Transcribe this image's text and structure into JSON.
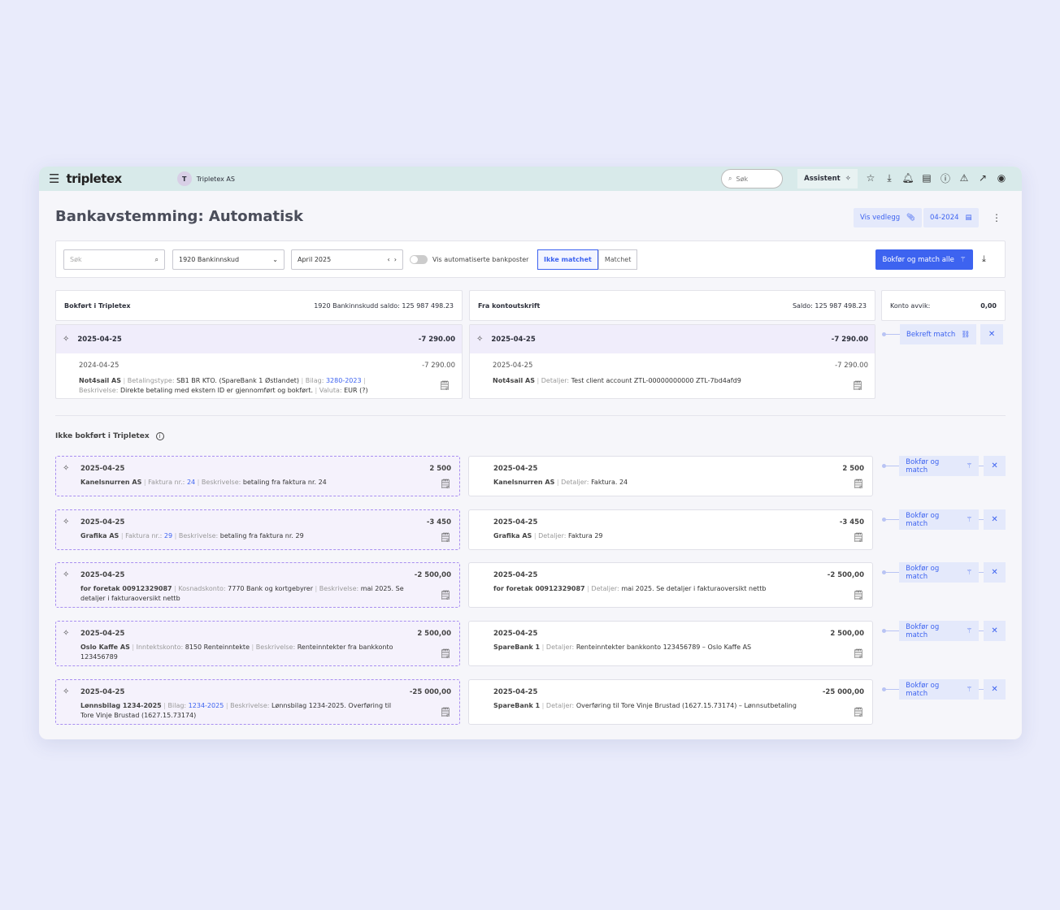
{
  "topbar": {
    "brand": "tripletex",
    "company_initial": "T",
    "company": "Tripletex AS",
    "search_placeholder": "Søk",
    "assistant": "Assistent"
  },
  "page": {
    "title": "Bankavstemming: Automatisk",
    "attachments_btn": "Vis vedlegg",
    "period_btn": "04-2024"
  },
  "filters": {
    "search_placeholder": "Søk",
    "account": "1920 Bankinnskud",
    "month": "April 2025",
    "toggle_label": "Vis automatiserte bankposter",
    "toggle_on": false,
    "tab_unmatched": "Ikke matchet",
    "tab_matched": "Matchet",
    "post_all": "Bokfør og match alle"
  },
  "summary": {
    "left_title": "Bokført i Tripletex",
    "left_balance": "1920 Bankinnskudd saldo:  125 987 498.23",
    "right_title": "Fra kontoutskrift",
    "right_balance": "Saldo:  125 987 498.23",
    "deviation_label": "Konto avvik:",
    "deviation_value": "0,00"
  },
  "matched": {
    "left": {
      "date": "2025-04-25",
      "amount": "-7 290.00",
      "sub_date": "2024-04-25",
      "sub_amount": "-7 290.00",
      "name": "Not4sail AS",
      "fields": [
        {
          "label": "Betalingstype:",
          "value": "SB1 BR KTO. (SpareBank 1 Østlandet)"
        },
        {
          "label": "Bilag:",
          "value": "3280-2023",
          "link": true
        },
        {
          "label": "Beskrivelse:",
          "value": "Direkte betaling med ekstern ID er gjennomført og bokført."
        },
        {
          "label": "Valuta:",
          "value": "EUR (?)"
        }
      ]
    },
    "right": {
      "date": "2025-04-25",
      "amount": "-7 290.00",
      "sub_date": "2025-04-25",
      "sub_amount": "-7 290.00",
      "name": "Not4sail AS",
      "fields": [
        {
          "label": "Detaljer:",
          "value": "Test client account ZTL-00000000000 ZTL-7bd4afd9"
        }
      ]
    },
    "confirm": "Bekreft match"
  },
  "unposted": {
    "title": "Ikke bokført i Tripletex",
    "action": "Bokfør og match",
    "rows": [
      {
        "left": {
          "date": "2025-04-25",
          "amount": "2 500",
          "name": "Kanelsnurren AS",
          "fields": [
            {
              "label": "Faktura nr.:",
              "value": "24",
              "link": true
            },
            {
              "label": "Beskrivelse:",
              "value": "betaling fra faktura nr. 24"
            }
          ]
        },
        "right": {
          "date": "2025-04-25",
          "amount": "2 500",
          "name": "Kanelsnurren AS",
          "fields": [
            {
              "label": "Detaljer:",
              "value": "Faktura. 24"
            }
          ]
        }
      },
      {
        "left": {
          "date": "2025-04-25",
          "amount": "-3 450",
          "name": "Grafika AS",
          "fields": [
            {
              "label": "Faktura nr.:",
              "value": "29",
              "link": true
            },
            {
              "label": "Beskrivelse:",
              "value": "betaling fra faktura nr. 29"
            }
          ]
        },
        "right": {
          "date": "2025-04-25",
          "amount": "-3 450",
          "name": "Grafika AS",
          "fields": [
            {
              "label": "Detaljer:",
              "value": "Faktura 29"
            }
          ]
        }
      },
      {
        "left": {
          "date": "2025-04-25",
          "amount": "-2 500,00",
          "name": "for foretak 00912329087",
          "fields": [
            {
              "label": "Kosnadskonto:",
              "value": "7770 Bank og kortgebyrer"
            },
            {
              "label": "Beskrivelse:",
              "value": "mai 2025. Se detaljer i fakturaoversikt nettb"
            }
          ]
        },
        "right": {
          "date": "2025-04-25",
          "amount": "-2 500,00",
          "name": "for foretak 00912329087",
          "fields": [
            {
              "label": "Detaljer:",
              "value": "mai 2025. Se detaljer i fakturaoversikt nettb"
            }
          ]
        }
      },
      {
        "left": {
          "date": "2025-04-25",
          "amount": "2 500,00",
          "name": "Oslo Kaffe AS",
          "fields": [
            {
              "label": "Inntektskonto:",
              "value": "8150 Renteinntekte"
            },
            {
              "label": "Beskrivelse:",
              "value": "Renteinntekter fra bankkonto 123456789"
            }
          ]
        },
        "right": {
          "date": "2025-04-25",
          "amount": "2 500,00",
          "name": "SpareBank 1",
          "fields": [
            {
              "label": "Detaljer:",
              "value": "Renteinntekter bankkonto 123456789 – Oslo Kaffe AS"
            }
          ]
        }
      },
      {
        "left": {
          "date": "2025-04-25",
          "amount": "-25 000,00",
          "name": "Lønnsbilag 1234-2025",
          "fields": [
            {
              "label": "Bilag:",
              "value": "1234-2025",
              "link": true
            },
            {
              "label": "Beskrivelse:",
              "value": "Lønnsbilag 1234-2025. Overføring til Tore Vinje Brustad (1627.15.73174)"
            }
          ]
        },
        "right": {
          "date": "2025-04-25",
          "amount": "-25 000,00",
          "name": "SpareBank 1",
          "fields": [
            {
              "label": "Detaljer:",
              "value": "Overføring til Tore Vinje Brustad (1627.15.73174) – Lønnsutbetaling"
            }
          ]
        }
      }
    ]
  },
  "colors": {
    "accent": "#3d63f0",
    "topbar": "#d8eaea",
    "suggested_bg": "#f5f2fc",
    "suggested_border": "#a98ff0"
  }
}
